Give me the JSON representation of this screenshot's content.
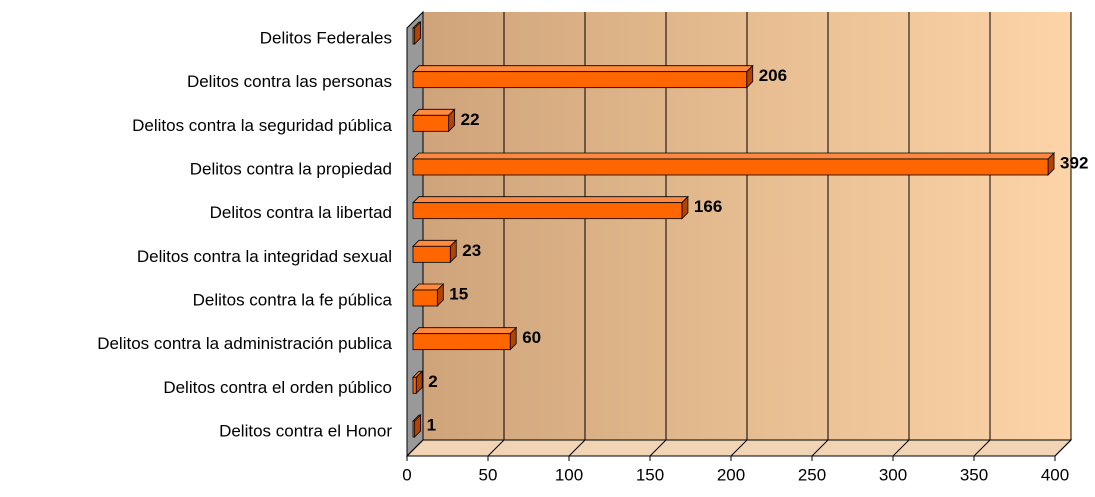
{
  "chart_data": {
    "type": "bar",
    "orientation": "horizontal",
    "categories": [
      "Delitos Federales",
      "Delitos contra las personas",
      "Delitos contra la seguridad pública",
      "Delitos contra la propiedad",
      "Delitos contra la libertad",
      "Delitos contra la integridad sexual",
      "Delitos contra la fe pública",
      "Delitos contra la administración publica",
      "Delitos contra el orden público",
      "Delitos contra el Honor"
    ],
    "values": [
      1,
      206,
      22,
      392,
      166,
      23,
      15,
      60,
      2,
      1
    ],
    "value_labels": [
      null,
      "206",
      "22",
      "392",
      "166",
      "23",
      "15",
      "60",
      "2",
      "1"
    ],
    "color": "#ff6600",
    "xlim": [
      0,
      400
    ],
    "xticks": [
      0,
      50,
      100,
      150,
      200,
      250,
      300,
      350,
      400
    ],
    "grid": true
  }
}
